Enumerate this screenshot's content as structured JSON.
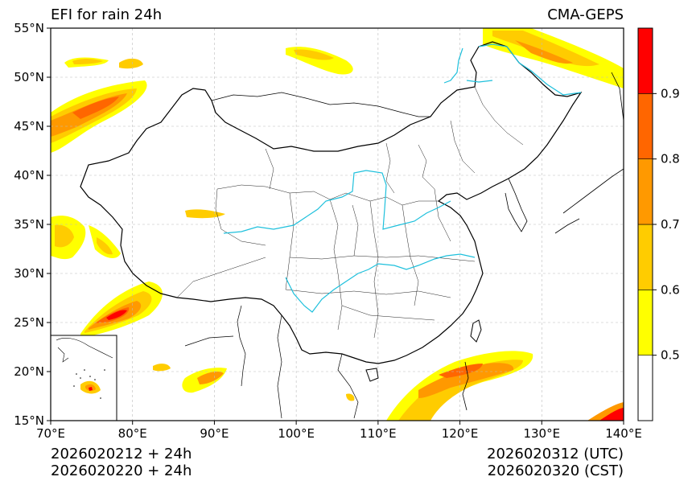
{
  "header": {
    "title": "EFI for rain 24h",
    "model": "CMA-GEPS"
  },
  "footer": {
    "init_utc": "2026020212 + 24h",
    "init_cst": "2026020220 + 24h",
    "valid_utc": "2026020312 (UTC)",
    "valid_cst": "2026020320 (CST)"
  },
  "map": {
    "lon_ticks": [
      "70°E",
      "80°E",
      "90°E",
      "100°E",
      "110°E",
      "120°E",
      "130°E",
      "140°E"
    ],
    "lat_ticks": [
      "15°N",
      "20°N",
      "25°N",
      "30°N",
      "35°N",
      "40°N",
      "45°N",
      "50°N",
      "55°N"
    ],
    "lon_range": [
      70,
      140
    ],
    "lat_range": [
      15,
      55
    ],
    "grid": true
  },
  "colorbar": {
    "levels": [
      "0.5",
      "0.6",
      "0.7",
      "0.8",
      "0.9"
    ],
    "colors": [
      "#ffffff",
      "#ffff00",
      "#ffcc00",
      "#ff9900",
      "#ff6600",
      "#ff0000"
    ]
  }
}
